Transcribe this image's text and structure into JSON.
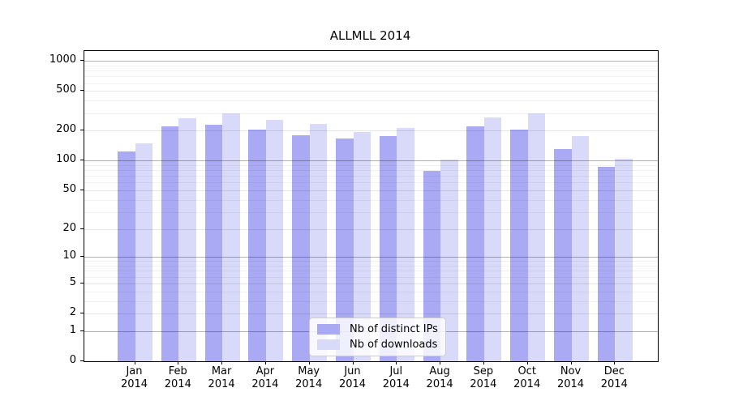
{
  "title": "ALLMLL 2014",
  "chart_data": {
    "type": "bar",
    "title": "ALLMLL 2014",
    "yscale": "log1p",
    "grid": true,
    "legend_position": "lower center",
    "x_year": "2014",
    "categories": [
      "Jan",
      "Feb",
      "Mar",
      "Apr",
      "May",
      "Jun",
      "Jul",
      "Aug",
      "Sep",
      "Oct",
      "Nov",
      "Dec"
    ],
    "yticks": [
      0,
      1,
      2,
      5,
      10,
      20,
      50,
      100,
      200,
      500,
      1000
    ],
    "ylim": [
      0,
      1250
    ],
    "series": [
      {
        "name": "Nb of distinct IPs",
        "color": "#a9a9f4",
        "values": [
          124,
          220,
          230,
          205,
          181,
          168,
          178,
          79,
          221,
          204,
          130,
          87
        ]
      },
      {
        "name": "Nb of downloads",
        "color": "#d9d9f9",
        "values": [
          149,
          265,
          300,
          258,
          235,
          194,
          214,
          103,
          273,
          296,
          176,
          105
        ]
      }
    ]
  }
}
